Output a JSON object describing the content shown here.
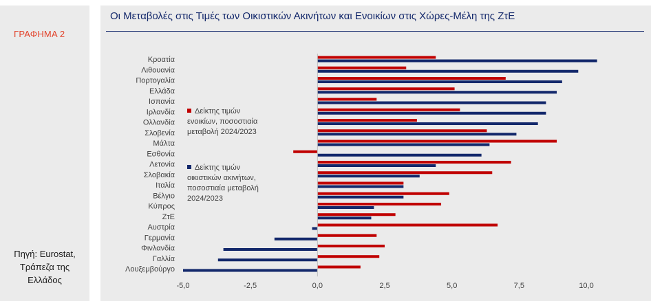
{
  "figure_label": "ΓΡΑΦΗΜΑ 2",
  "source_note": [
    "Πηγή: Eurostat,",
    "Τράπεζα της",
    "Ελλάδος"
  ],
  "colors": {
    "rent": "#c00000",
    "house": "#13286b",
    "title": "#13286b",
    "figure_label": "#e2432b",
    "panel": "#ebebeb"
  },
  "chart_data": {
    "type": "bar",
    "orientation": "horizontal",
    "title": "Οι Μεταβολές στις Τιμές των Οικιστικών Ακινήτων και Ενοικίων στις Χώρες-Μέλη της ΖτΕ",
    "categories": [
      "Κροατία",
      "Λιθουανία",
      "Πορτογαλία",
      "Ελλάδα",
      "Ισπανία",
      "Ιρλανδία",
      "Ολλανδία",
      "Σλοβενία",
      "Μάλτα",
      "Εσθονία",
      "Λετονία",
      "Σλοβακία",
      "Ιταλία",
      "Βέλγιο",
      "Κύπρος",
      "ΖτΕ",
      "Αυστρία",
      "Γερμανία",
      "Φινλανδία",
      "Γαλλία",
      "Λουξεμβούργο"
    ],
    "series": [
      {
        "name": "Δείκτης τιμών ενοικίων, ποσοστιαία μεταβολή 2024/2023",
        "values": [
          4.4,
          3.3,
          7.0,
          5.1,
          2.2,
          5.3,
          3.7,
          6.3,
          8.9,
          -0.9,
          7.2,
          6.5,
          3.2,
          4.9,
          4.6,
          2.9,
          6.7,
          2.2,
          2.5,
          2.3,
          1.6
        ]
      },
      {
        "name": "Δείκτης τιμών οικιστικών ακινήτων, ποσοστιαία μεταβολή 2024/2023",
        "values": [
          10.4,
          9.7,
          9.1,
          8.9,
          8.5,
          8.5,
          8.2,
          7.4,
          6.4,
          6.1,
          4.4,
          3.8,
          3.2,
          3.2,
          2.1,
          2.0,
          -0.2,
          -1.6,
          -3.5,
          -3.7,
          -5.0
        ]
      }
    ],
    "xlim": [
      -5.0,
      10.0
    ],
    "xticks": [
      "-5,0",
      "-2,5",
      "0,0",
      "2,5",
      "5,0",
      "7,5",
      "10,0"
    ],
    "grid": false,
    "legend_position": "left inside plot"
  },
  "legend": {
    "rent_lines": [
      "Δείκτης τιμών",
      "ενοικίων, ποσοστιαία",
      "μεταβολή 2024/2023"
    ],
    "house_lines": [
      "Δείκτης τιμών",
      "οικιστικών ακινήτων,",
      "ποσοστιαία μεταβολή",
      "2024/2023"
    ]
  }
}
